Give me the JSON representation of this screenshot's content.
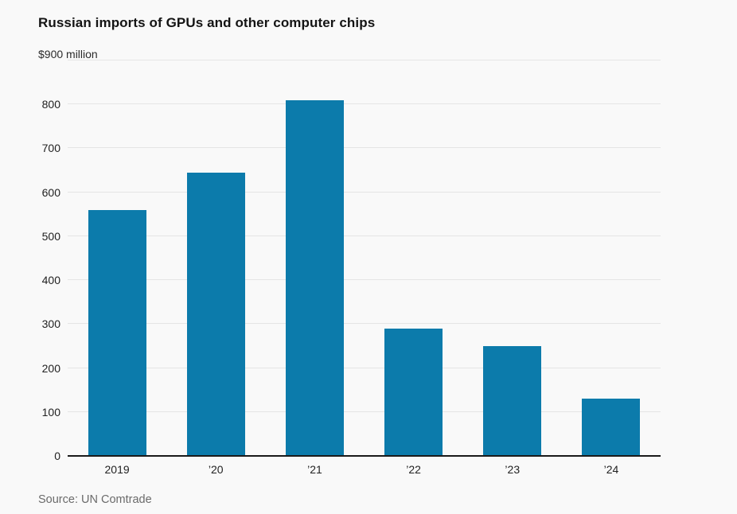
{
  "title": "Russian imports of GPUs and other computer chips",
  "source": "Source: UN Comtrade",
  "chart_data": {
    "type": "bar",
    "title": "Russian imports of GPUs and other computer chips",
    "unit_label": "$900 million",
    "categories": [
      "2019",
      "’20",
      "’21",
      "’22",
      "’23",
      "’24"
    ],
    "values": [
      560,
      645,
      810,
      290,
      250,
      130
    ],
    "ylim": [
      0,
      900
    ],
    "yticks": [
      0,
      100,
      200,
      300,
      400,
      500,
      600,
      700,
      800,
      900
    ],
    "grid": true,
    "legend": "none",
    "bar_color": "#0c7bab",
    "axis_color": "#1a1a1a",
    "gridline_color": "#e5e5e5",
    "background_color": "#f9f9f9"
  }
}
